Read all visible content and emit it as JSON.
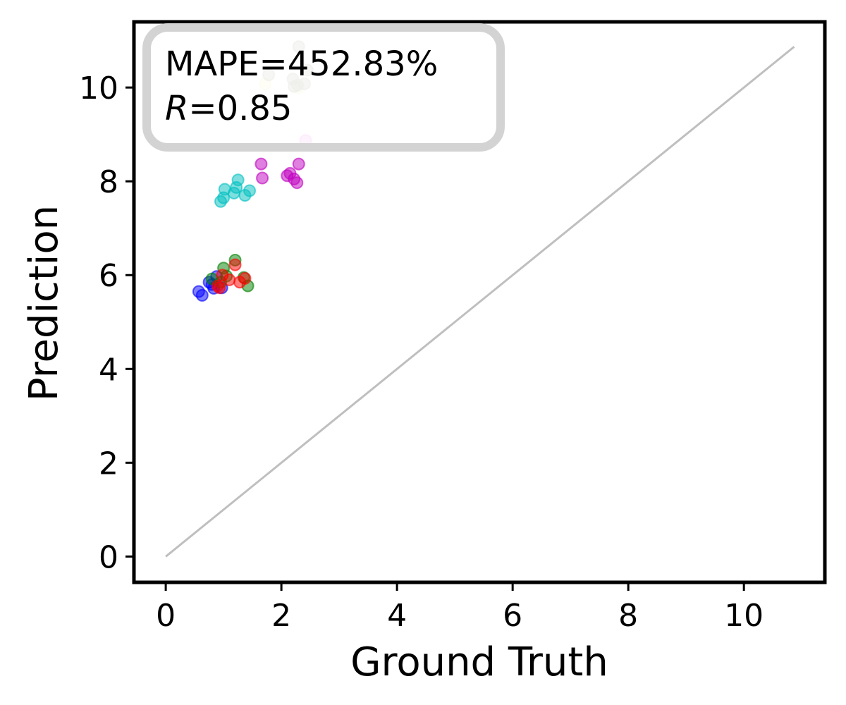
{
  "chart_data": {
    "type": "scatter",
    "title": "",
    "xlabel": "Ground Truth",
    "ylabel": "Prediction",
    "xlim": [
      -0.55,
      11.4
    ],
    "ylim": [
      -0.55,
      11.4
    ],
    "xticks": [
      0,
      2,
      4,
      6,
      8,
      10
    ],
    "yticks": [
      0,
      2,
      4,
      6,
      8,
      10
    ],
    "grid": false,
    "legend": "none",
    "annotation": {
      "position": "top-left",
      "line1": "MAPE=452.83%",
      "r_symbol": "R",
      "r_value": "=0.85"
    },
    "reference_line": {
      "x": [
        0,
        10.87
      ],
      "y": [
        0,
        10.87
      ],
      "color": "#bfbfbf"
    },
    "series": [
      {
        "color": "#0000ff",
        "x": [
          0.57,
          0.63,
          0.75,
          0.83,
          0.88,
          0.97,
          0.8
        ],
        "y": [
          5.65,
          5.57,
          5.85,
          5.72,
          5.97,
          5.73,
          5.8
        ]
      },
      {
        "color": "#008000",
        "x": [
          0.8,
          1.0,
          1.2,
          1.35,
          1.42,
          1.05,
          0.95
        ],
        "y": [
          5.92,
          6.15,
          6.32,
          5.95,
          5.77,
          5.98,
          5.85
        ]
      },
      {
        "color": "#ff0000",
        "x": [
          0.9,
          0.98,
          1.1,
          1.2,
          1.28,
          1.37,
          0.93
        ],
        "y": [
          5.77,
          6.0,
          5.9,
          6.22,
          5.85,
          5.93,
          5.73
        ]
      },
      {
        "color": "#00bfbf",
        "x": [
          0.95,
          1.0,
          1.02,
          1.18,
          1.22,
          1.25,
          1.37,
          1.45
        ],
        "y": [
          7.57,
          7.65,
          7.83,
          7.75,
          7.87,
          8.03,
          7.7,
          7.8
        ]
      },
      {
        "color": "#bf00bf",
        "x": [
          1.65,
          1.67,
          2.1,
          2.15,
          2.22,
          2.27,
          2.3
        ],
        "y": [
          8.37,
          8.07,
          8.12,
          8.17,
          8.05,
          7.97,
          8.37
        ]
      },
      {
        "color": "#ee82ee",
        "x": [
          2.42
        ],
        "y": [
          8.87
        ]
      },
      {
        "color": "#f0f0b0",
        "x": [
          1.72,
          2.3
        ],
        "y": [
          10.08,
          10.0
        ]
      },
      {
        "color": "#a8a89a",
        "x": [
          1.78,
          2.2,
          2.22,
          2.3,
          2.4,
          2.45,
          2.28
        ],
        "y": [
          10.27,
          10.18,
          10.02,
          10.87,
          10.08,
          10.37,
          10.05
        ]
      }
    ]
  }
}
